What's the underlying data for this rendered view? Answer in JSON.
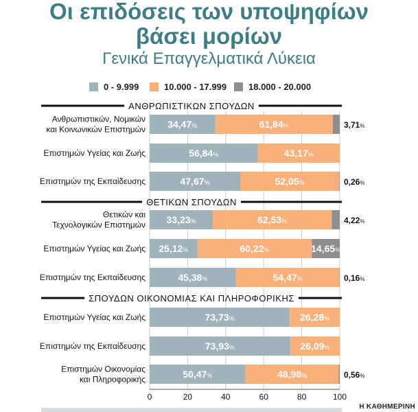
{
  "title_line1": "Οι επιδόσεις των υποψηφίων",
  "title_line2": "βάσει μορίων",
  "subtitle": "Γενικά Επαγγελματικά Λύκεια",
  "credit": "Η ΚΑΘΗΜΕΡΙΝΗ",
  "colors": {
    "low": "#9fb3bb",
    "mid": "#f9b07a",
    "high": "#8e8e8e",
    "title": "#3d7d84"
  },
  "chart_data": {
    "type": "bar",
    "orientation": "horizontal",
    "stacked": true,
    "series": [
      {
        "name": "0 - 9.999",
        "color": "#9fb3bb"
      },
      {
        "name": "10.000 - 17.999",
        "color": "#f9b07a"
      },
      {
        "name": "18.000 - 20.000",
        "color": "#8e8e8e"
      }
    ],
    "xlim": [
      0,
      100
    ],
    "xticks": [
      "0",
      "20",
      "40",
      "60",
      "80",
      "100"
    ],
    "groups": [
      {
        "name": "ΑΝΘΡΩΠΙΣΤΙΚΩΝ ΣΠΟΥΔΩΝ",
        "bars": [
          {
            "label": [
              "Ανθρωπιστικών, Νομικών",
              "και Κοινωνικών Επιστημών"
            ],
            "values": [
              34.47,
              61.84,
              3.71
            ],
            "value_labels": [
              "34,47",
              "61,84",
              "3,71"
            ]
          },
          {
            "label": [
              "Επιστημών Υγείας και Ζωής"
            ],
            "values": [
              56.84,
              43.17,
              0
            ],
            "value_labels": [
              "56,84",
              "43,17",
              ""
            ]
          },
          {
            "label": [
              "Επιστημών της Εκπαίδευσης"
            ],
            "values": [
              47.67,
              52.05,
              0.26
            ],
            "value_labels": [
              "47,67",
              "52,05",
              "0,26"
            ]
          }
        ]
      },
      {
        "name": "ΘΕΤΙΚΩΝ ΣΠΟΥΔΩΝ",
        "bars": [
          {
            "label": [
              "Θετικών και",
              "Τεχνολογικών Επιστημών"
            ],
            "values": [
              33.23,
              62.53,
              4.22
            ],
            "value_labels": [
              "33,23",
              "62,53",
              "4,22"
            ]
          },
          {
            "label": [
              "Επιστημών Υγείας και Ζωής"
            ],
            "values": [
              25.12,
              60.22,
              14.65
            ],
            "value_labels": [
              "25,12",
              "60,22",
              "14,65"
            ]
          },
          {
            "label": [
              "Επιστημών της Εκπαίδευσης"
            ],
            "values": [
              45.38,
              54.47,
              0.16
            ],
            "value_labels": [
              "45,38",
              "54,47",
              "0,16"
            ]
          }
        ]
      },
      {
        "name": "ΣΠΟΥΔΩΝ ΟΙΚΟΝΟΜΙΑΣ ΚΑΙ ΠΛΗΡΟΦΟΡΙΚΗΣ",
        "bars": [
          {
            "label": [
              "Επιστημών Υγείας και Ζωής"
            ],
            "values": [
              73.73,
              26.28,
              0
            ],
            "value_labels": [
              "73,73",
              "26,28",
              ""
            ]
          },
          {
            "label": [
              "Επιστημών της Εκπαίδευσης"
            ],
            "values": [
              73.93,
              26.09,
              0
            ],
            "value_labels": [
              "73,93",
              "26,09",
              ""
            ]
          },
          {
            "label": [
              "Επιστημών Οικονομίας",
              "και Πληροφορικής"
            ],
            "values": [
              50.47,
              48.98,
              0.56
            ],
            "value_labels": [
              "50,47",
              "48,98",
              "0,56"
            ]
          }
        ]
      }
    ]
  }
}
